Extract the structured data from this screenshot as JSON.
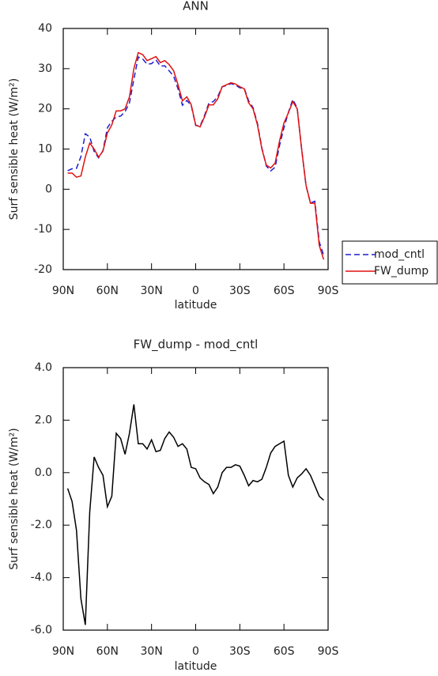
{
  "chart_data": [
    {
      "type": "line",
      "title": "ANN",
      "xlabel": "latitude",
      "ylabel": "Surf sensible heat (W/m²)",
      "x": [
        87,
        84,
        81,
        78,
        75,
        72,
        69,
        66,
        63,
        60,
        57,
        54,
        51,
        48,
        45,
        42,
        39,
        36,
        33,
        30,
        27,
        24,
        21,
        18,
        15,
        12,
        9,
        6,
        3,
        0,
        -3,
        -6,
        -9,
        -12,
        -15,
        -18,
        -21,
        -24,
        -27,
        -30,
        -33,
        -36,
        -39,
        -42,
        -45,
        -48,
        -51,
        -54,
        -57,
        -60,
        -63,
        -66,
        -69,
        -72,
        -75,
        -78,
        -81,
        -84,
        -87
      ],
      "series": [
        {
          "name": "mod_cntl",
          "color": "#1f1fd0",
          "linestyle": "dashed",
          "values": [
            4.6,
            5.1,
            5.2,
            8.1,
            13.8,
            13,
            9.4,
            7.8,
            9.6,
            15.3,
            16.9,
            18,
            18.2,
            19.3,
            21.5,
            27.4,
            32.9,
            32.4,
            31.1,
            31.25,
            32.2,
            30.65,
            30.7,
            29.45,
            28.15,
            25,
            20.9,
            22.1,
            20.8,
            15.85,
            15.7,
            18.35,
            21.45,
            21.8,
            23.05,
            25.5,
            25.8,
            26.3,
            25.9,
            25.25,
            25.1,
            22,
            20.3,
            16.35,
            10.25,
            5.8,
            4.55,
            5.5,
            10.9,
            15.3,
            19.1,
            22.35,
            20.2,
            10.05,
            0.85,
            -3.4,
            -3,
            -13.1,
            -16.45
          ]
        },
        {
          "name": "FW_dump",
          "color": "#e01010",
          "linestyle": "solid",
          "values": [
            4,
            4,
            3,
            3.3,
            8,
            11.5,
            10,
            8,
            9.5,
            14,
            16,
            19.5,
            19.5,
            20,
            23,
            30,
            34,
            33.5,
            32,
            32.5,
            33,
            31.5,
            32,
            31,
            29.5,
            26,
            22,
            23,
            21,
            16,
            15.5,
            18,
            21,
            21,
            22.5,
            25.5,
            26,
            26.5,
            26.2,
            25.5,
            25,
            21.5,
            20,
            16,
            10,
            6,
            5.3,
            6.5,
            12,
            16.5,
            19,
            21.8,
            20,
            10,
            1,
            -3.5,
            -3.5,
            -14,
            -17.5
          ]
        }
      ],
      "xlim": [
        90,
        -90
      ],
      "xticks": [
        {
          "value": 90,
          "label": "90N"
        },
        {
          "value": 60,
          "label": "60N"
        },
        {
          "value": 30,
          "label": "30N"
        },
        0,
        {
          "value": -30,
          "label": "30S"
        },
        {
          "value": -60,
          "label": "60S"
        },
        {
          "value": -90,
          "label": "90S"
        }
      ],
      "ylim": [
        -20,
        40
      ],
      "yticks": [
        -20,
        -10,
        0,
        10,
        20,
        30,
        40
      ],
      "legend": "right"
    },
    {
      "type": "line",
      "title": "FW_dump - mod_cntl",
      "xlabel": "latitude",
      "ylabel": "Surf sensible heat (W/m²)",
      "x": [
        87,
        84,
        81,
        78,
        75,
        72,
        69,
        66,
        63,
        60,
        57,
        54,
        51,
        48,
        45,
        42,
        39,
        36,
        33,
        30,
        27,
        24,
        21,
        18,
        15,
        12,
        9,
        6,
        3,
        0,
        -3,
        -6,
        -9,
        -12,
        -15,
        -18,
        -21,
        -24,
        -27,
        -30,
        -33,
        -36,
        -39,
        -42,
        -45,
        -48,
        -51,
        -54,
        -57,
        -60,
        -63,
        -66,
        -69,
        -72,
        -75,
        -78,
        -81,
        -84,
        -87
      ],
      "series": [
        {
          "color": "#000000",
          "linestyle": "solid",
          "values": [
            -0.6,
            -1.1,
            -2.2,
            -4.8,
            -5.8,
            -1.5,
            0.6,
            0.2,
            -0.1,
            -1.3,
            -0.9,
            1.5,
            1.3,
            0.7,
            1.5,
            2.6,
            1.1,
            1.1,
            0.9,
            1.25,
            0.8,
            0.85,
            1.3,
            1.55,
            1.35,
            1.0,
            1.1,
            0.9,
            0.2,
            0.15,
            -0.2,
            -0.35,
            -0.45,
            -0.8,
            -0.55,
            0,
            0.2,
            0.2,
            0.3,
            0.25,
            -0.1,
            -0.5,
            -0.3,
            -0.35,
            -0.25,
            0.2,
            0.75,
            1.0,
            1.1,
            1.2,
            -0.1,
            -0.55,
            -0.2,
            -0.05,
            0.15,
            -0.1,
            -0.5,
            -0.9,
            -1.05
          ]
        }
      ],
      "xlim": [
        90,
        -90
      ],
      "xticks": [
        {
          "value": 90,
          "label": "90N"
        },
        {
          "value": 60,
          "label": "60N"
        },
        {
          "value": 30,
          "label": "30N"
        },
        0,
        {
          "value": -30,
          "label": "30S"
        },
        {
          "value": -60,
          "label": "60S"
        },
        {
          "value": -90,
          "label": "90S"
        }
      ],
      "ylim": [
        -6,
        4
      ],
      "yticks": [
        {
          "value": -6,
          "label": "-6.0"
        },
        {
          "value": -4,
          "label": "-4.0"
        },
        {
          "value": -2,
          "label": "-2.0"
        },
        {
          "value": 0,
          "label": "0.0"
        },
        {
          "value": 2,
          "label": "2.0"
        },
        {
          "value": 4,
          "label": "4.0"
        }
      ]
    }
  ]
}
